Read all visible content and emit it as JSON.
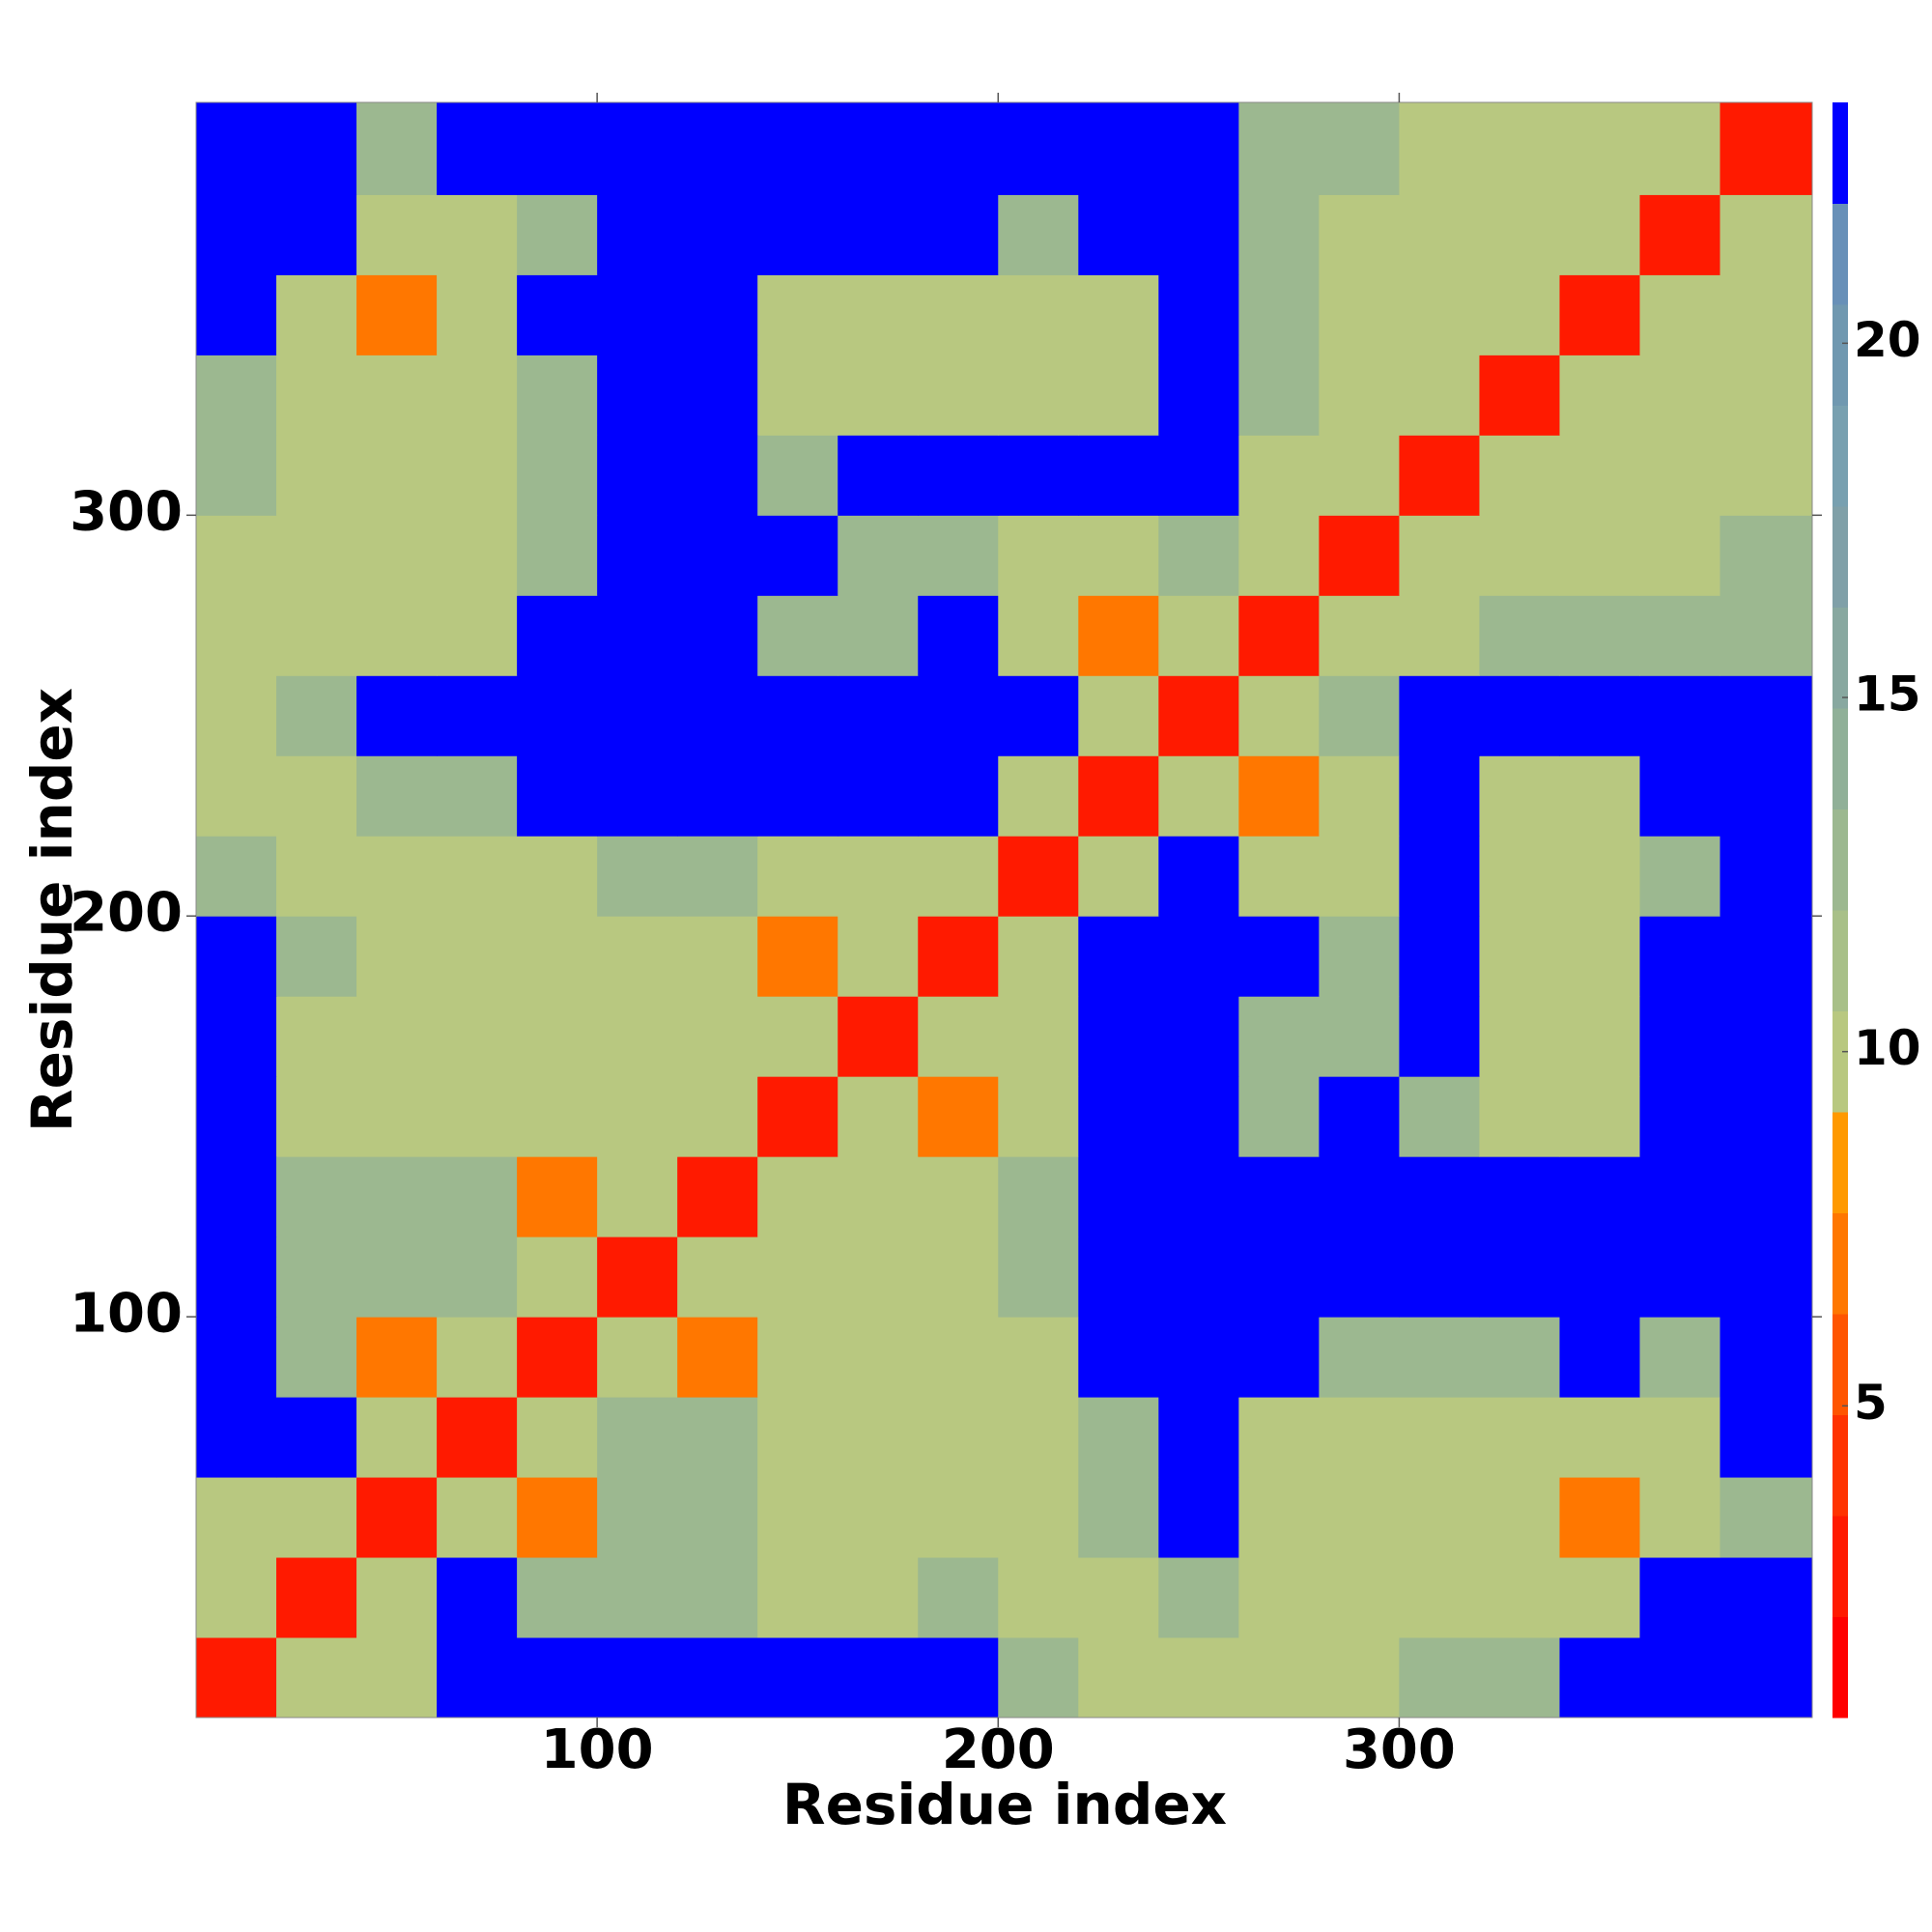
{
  "chart_data": {
    "type": "heatmap",
    "xlabel": "Residue index",
    "ylabel": "Residue index",
    "xlim": [
      0,
      403
    ],
    "ylim": [
      0,
      403
    ],
    "xticks": [
      100,
      200,
      300
    ],
    "yticks": [
      100,
      200,
      300
    ],
    "xbins": [
      0,
      20,
      40,
      60,
      80,
      100,
      120,
      140,
      160,
      180,
      200,
      220,
      240,
      260,
      280,
      300,
      320,
      340,
      360,
      380,
      403
    ],
    "ybins": [
      0,
      20,
      40,
      60,
      80,
      100,
      120,
      140,
      160,
      180,
      200,
      220,
      240,
      260,
      280,
      300,
      320,
      340,
      360,
      380,
      403
    ],
    "values": [
      [
        3,
        10,
        10,
        23,
        23,
        23,
        23,
        23,
        23,
        23,
        12,
        10,
        10,
        10,
        10,
        12,
        12,
        23,
        23,
        23
      ],
      [
        10,
        3,
        10,
        23,
        12,
        12,
        12,
        10,
        10,
        12,
        10,
        10,
        12,
        10,
        10,
        10,
        10,
        10,
        23,
        23
      ],
      [
        10,
        10,
        3,
        10,
        7,
        12,
        12,
        10,
        10,
        10,
        10,
        12,
        23,
        10,
        10,
        10,
        10,
        7,
        10,
        12
      ],
      [
        23,
        23,
        10,
        3,
        10,
        12,
        12,
        10,
        10,
        10,
        10,
        12,
        23,
        10,
        10,
        10,
        10,
        10,
        10,
        23
      ],
      [
        23,
        12,
        7,
        10,
        3,
        10,
        7,
        10,
        10,
        10,
        10,
        23,
        23,
        23,
        12,
        12,
        12,
        23,
        12,
        23
      ],
      [
        23,
        12,
        12,
        12,
        10,
        3,
        10,
        10,
        10,
        10,
        12,
        23,
        23,
        23,
        23,
        23,
        23,
        23,
        23,
        23
      ],
      [
        23,
        12,
        12,
        12,
        7,
        10,
        3,
        10,
        10,
        10,
        12,
        23,
        23,
        23,
        23,
        23,
        23,
        23,
        23,
        23
      ],
      [
        23,
        10,
        10,
        10,
        10,
        10,
        10,
        3,
        10,
        7,
        10,
        23,
        23,
        12,
        23,
        12,
        10,
        10,
        23,
        23
      ],
      [
        23,
        10,
        10,
        10,
        10,
        10,
        10,
        10,
        3,
        10,
        10,
        23,
        23,
        12,
        12,
        23,
        10,
        10,
        23,
        23
      ],
      [
        23,
        12,
        10,
        10,
        10,
        10,
        10,
        7,
        10,
        3,
        10,
        23,
        23,
        23,
        12,
        23,
        10,
        10,
        23,
        23
      ],
      [
        12,
        10,
        10,
        10,
        10,
        12,
        12,
        10,
        10,
        10,
        3,
        10,
        23,
        10,
        10,
        23,
        10,
        10,
        12,
        23
      ],
      [
        10,
        10,
        12,
        12,
        23,
        23,
        23,
        23,
        23,
        23,
        10,
        3,
        10,
        7,
        10,
        23,
        10,
        10,
        23,
        23
      ],
      [
        10,
        12,
        23,
        23,
        23,
        23,
        23,
        23,
        23,
        23,
        23,
        10,
        3,
        10,
        12,
        23,
        23,
        23,
        23,
        23
      ],
      [
        10,
        10,
        10,
        10,
        23,
        23,
        23,
        12,
        12,
        23,
        10,
        7,
        10,
        3,
        10,
        10,
        12,
        12,
        12,
        12
      ],
      [
        10,
        10,
        10,
        10,
        12,
        23,
        23,
        23,
        12,
        12,
        10,
        10,
        12,
        10,
        3,
        10,
        10,
        10,
        10,
        12
      ],
      [
        12,
        10,
        10,
        10,
        12,
        23,
        23,
        12,
        23,
        23,
        23,
        23,
        23,
        10,
        10,
        3,
        10,
        10,
        10,
        10
      ],
      [
        12,
        10,
        10,
        10,
        12,
        23,
        23,
        10,
        10,
        10,
        10,
        10,
        23,
        12,
        10,
        10,
        3,
        10,
        10,
        10
      ],
      [
        23,
        10,
        7,
        10,
        23,
        23,
        23,
        10,
        10,
        10,
        10,
        10,
        23,
        12,
        10,
        10,
        10,
        3,
        10,
        10
      ],
      [
        23,
        23,
        10,
        10,
        12,
        23,
        23,
        23,
        23,
        23,
        12,
        23,
        23,
        12,
        10,
        10,
        10,
        10,
        3,
        10
      ],
      [
        23,
        23,
        12,
        23,
        23,
        23,
        23,
        23,
        23,
        23,
        23,
        23,
        23,
        12,
        12,
        10,
        10,
        10,
        10,
        3
      ]
    ],
    "clim": [
      0.6,
      23.4
    ],
    "cticks": [
      5,
      10,
      15,
      20
    ],
    "colors": [
      "#ff0000",
      "#ff1a00",
      "#ff3300",
      "#ff5500",
      "#ff7700",
      "#ff9900",
      "#b8c880",
      "#a8c088",
      "#9cb890",
      "#90b098",
      "#88a8a0",
      "#80a0a8",
      "#78a0b0",
      "#7098b0",
      "#6890b8",
      "#0000ff"
    ]
  }
}
